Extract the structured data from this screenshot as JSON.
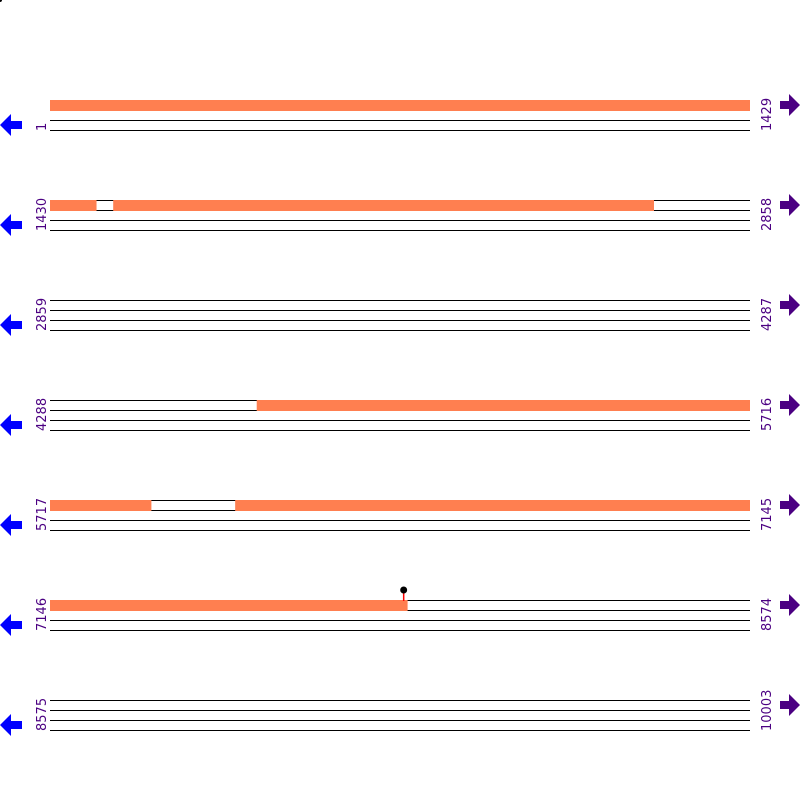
{
  "colors": {
    "feature": "#ff7f50",
    "line": "#000000",
    "label": "#4b0082",
    "left_arrow": "#0000ff",
    "right_arrow": "#4b0082",
    "marker_stem": "#ff0000",
    "marker_head": "#000000"
  },
  "icons": {
    "left": "arrow-left-icon",
    "right": "arrow-right-icon"
  },
  "rows": [
    {
      "start": "1",
      "end": "1429",
      "s": 1,
      "e": 1429,
      "features": [
        [
          1,
          1429
        ]
      ]
    },
    {
      "start": "1430",
      "end": "2858",
      "s": 1430,
      "e": 2858,
      "features": [
        [
          1430,
          1524
        ],
        [
          1559,
          2662
        ]
      ]
    },
    {
      "start": "2859",
      "end": "4287",
      "s": 2859,
      "e": 4287,
      "features": []
    },
    {
      "start": "4288",
      "end": "5716",
      "s": 4288,
      "e": 5716,
      "features": [
        [
          4710,
          5716
        ]
      ]
    },
    {
      "start": "5717",
      "end": "7145",
      "s": 5717,
      "e": 7145,
      "features": [
        [
          5717,
          5923
        ],
        [
          6095,
          7145
        ]
      ]
    },
    {
      "start": "7146",
      "end": "8574",
      "s": 7146,
      "e": 8574,
      "features": [
        [
          7146,
          7875
        ]
      ],
      "marker": 7868
    },
    {
      "start": "8575",
      "end": "10003",
      "s": 8575,
      "e": 10003,
      "features": []
    }
  ]
}
